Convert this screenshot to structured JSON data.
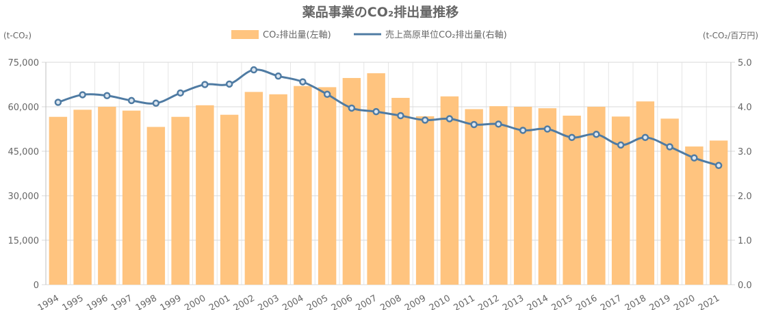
{
  "chart_data": {
    "type": "bar",
    "title": "薬品事業のCO₂排出量推移",
    "y_left_unit": "(t-CO₂)",
    "y_right_unit": "(t-CO₂/百万円)",
    "categories": [
      "1994",
      "1995",
      "1996",
      "1997",
      "1998",
      "1999",
      "2000",
      "2001",
      "2002",
      "2003",
      "2004",
      "2005",
      "2006",
      "2007",
      "2008",
      "2009",
      "2010",
      "2011",
      "2012",
      "2013",
      "2014",
      "2015",
      "2016",
      "2017",
      "2018",
      "2019",
      "2020",
      "2021"
    ],
    "series": [
      {
        "name": "CO₂排出量(左軸)",
        "type": "bar",
        "axis": "left",
        "color": "#ffc47f",
        "values": [
          56600,
          59000,
          60000,
          58700,
          53200,
          56600,
          60500,
          57300,
          65000,
          64200,
          67000,
          66600,
          69700,
          71300,
          63000,
          56800,
          63500,
          59200,
          60200,
          60000,
          59500,
          57000,
          60000,
          56700,
          61800,
          56000,
          46600,
          48600
        ]
      },
      {
        "name": "売上高原単位CO₂排出量(右軸)",
        "type": "line",
        "axis": "right",
        "color": "#4f7ba3",
        "values": [
          4.1,
          4.27,
          4.25,
          4.14,
          4.08,
          4.31,
          4.5,
          4.51,
          4.83,
          4.69,
          4.56,
          4.28,
          3.97,
          3.89,
          3.8,
          3.7,
          3.73,
          3.6,
          3.61,
          3.47,
          3.5,
          3.31,
          3.38,
          3.14,
          3.31,
          3.1,
          2.85,
          2.68
        ]
      }
    ],
    "y_left": {
      "min": 0,
      "max": 75000,
      "ticks": [
        "0",
        "15,000",
        "30,000",
        "45,000",
        "60,000",
        "75,000"
      ]
    },
    "y_right": {
      "min": 0,
      "max": 5,
      "ticks": [
        "0.0",
        "1.0",
        "2.0",
        "3.0",
        "4.0",
        "5.0"
      ]
    },
    "grid": true,
    "legend_position": "top"
  }
}
